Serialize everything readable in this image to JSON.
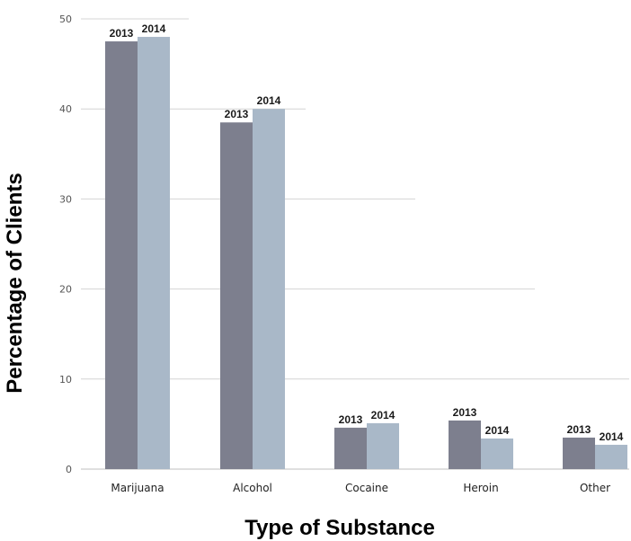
{
  "chart_data": {
    "type": "bar",
    "title": "",
    "xlabel": "Type of Substance",
    "ylabel": "Percentage of Clients",
    "categories": [
      "Marijuana",
      "Alcohol",
      "Cocaine",
      "Heroin",
      "Other"
    ],
    "series": [
      {
        "name": "2013",
        "color": "#7d7f8e",
        "values": [
          47.5,
          38.5,
          4.6,
          5.4,
          3.5
        ]
      },
      {
        "name": "2014",
        "color": "#a9b8c8",
        "values": [
          48.0,
          40.0,
          5.1,
          3.4,
          2.7
        ]
      }
    ],
    "ylim": [
      0,
      50
    ],
    "yticks": [
      0,
      10,
      20,
      30,
      40,
      50
    ],
    "grid": true,
    "legend": "none"
  }
}
